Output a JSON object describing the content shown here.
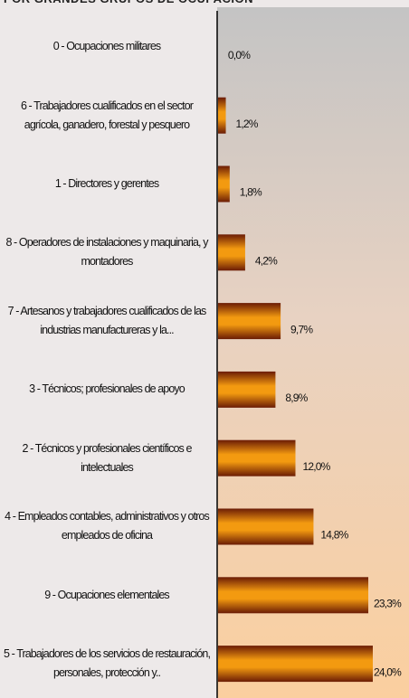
{
  "chart_data": {
    "type": "bar",
    "orientation": "horizontal",
    "title": "POR GRANDES GRUPOS DE OCUPACIÓN",
    "categories": [
      "0 - Ocupaciones militares",
      "6 - Trabajadores cualificados en el sector agrícola, ganadero, forestal y pesquero",
      "1 - Directores y gerentes",
      "8 - Operadores de instalaciones y maquinaria, y montadores",
      "7 - Artesanos y trabajadores cualificados de las industrias manufactureras y la...",
      "3 - Técnicos; profesionales de apoyo",
      "2 - Técnicos y profesionales científicos e intelectuales",
      "4 - Empleados contables, administrativos y otros empleados de oficina",
      "9 - Ocupaciones elementales",
      "5 - Trabajadores de los servicios de restauración, personales, protección y.."
    ],
    "values": [
      0.0,
      1.2,
      1.8,
      4.2,
      9.7,
      8.9,
      12.0,
      14.8,
      23.3,
      24.0
    ],
    "value_labels": [
      "0,0%",
      "1,2%",
      "1,8%",
      "4,2%",
      "9,7%",
      "8,9%",
      "12,0%",
      "14,8%",
      "23,3%",
      "24,0%"
    ]
  }
}
